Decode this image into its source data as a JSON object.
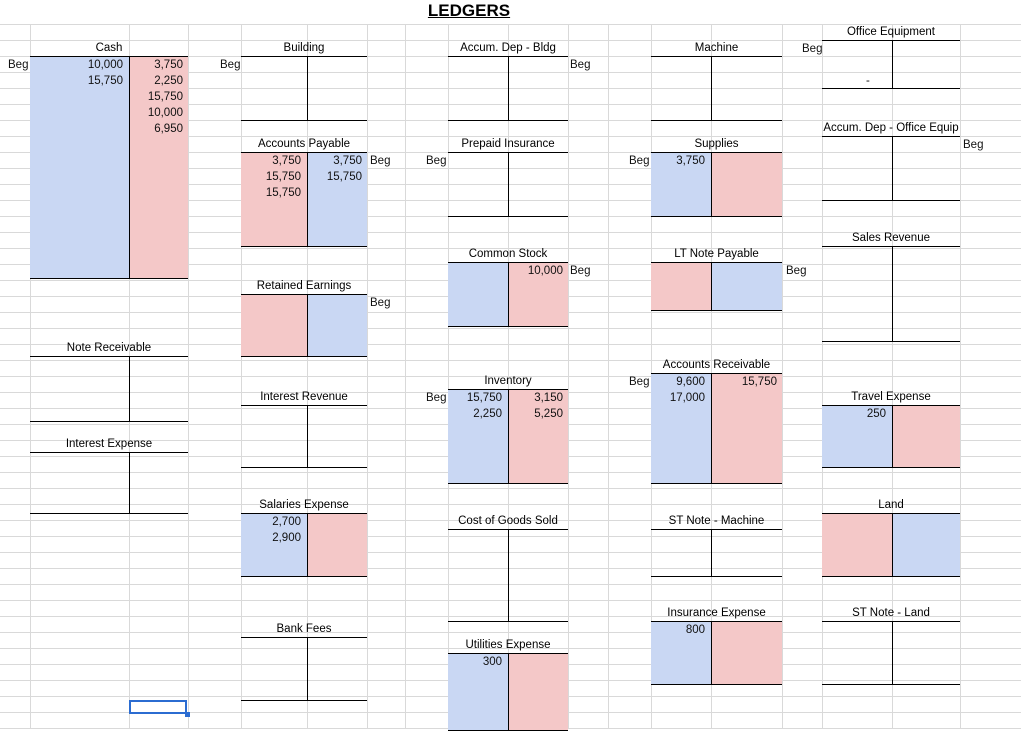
{
  "page_title": "LEDGERS",
  "beg_label": "Beg",
  "colors": {
    "debit_fill": "#c9d7f3",
    "credit_fill": "#f4c8c8",
    "gridline": "#d9d9d9",
    "selection": "#2b6cd1"
  },
  "accounts": {
    "cash": {
      "title": "Cash",
      "debits": [
        "10,000",
        "15,750"
      ],
      "credits": [
        "3,750",
        "2,250",
        "15,750",
        "10,000",
        "6,950"
      ]
    },
    "building": {
      "title": "Building",
      "debits": [],
      "credits": []
    },
    "accum_dep_bldg": {
      "title": "Accum. Dep - Bldg",
      "debits": [],
      "credits": []
    },
    "machine": {
      "title": "Machine",
      "debits": [],
      "credits": []
    },
    "office_equipment": {
      "title": "Office Equipment",
      "debits": [],
      "credits": [],
      "dash": "-"
    },
    "accounts_payable": {
      "title": "Accounts Payable",
      "debits": [
        "3,750",
        "15,750",
        "15,750"
      ],
      "credits": [
        "3,750",
        "15,750"
      ]
    },
    "prepaid_insurance": {
      "title": "Prepaid Insurance",
      "debits": [],
      "credits": []
    },
    "supplies": {
      "title": "Supplies",
      "debits": [
        "3,750"
      ],
      "credits": []
    },
    "accum_dep_office": {
      "title": "Accum. Dep - Office Equip",
      "debits": [],
      "credits": []
    },
    "sales_revenue": {
      "title": "Sales Revenue",
      "debits": [],
      "credits": []
    },
    "common_stock": {
      "title": "Common Stock",
      "debits": [],
      "credits": [
        "10,000"
      ]
    },
    "lt_note_payable": {
      "title": "LT Note Payable",
      "debits": [],
      "credits": []
    },
    "retained_earnings": {
      "title": "Retained Earnings",
      "debits": [],
      "credits": []
    },
    "note_receivable": {
      "title": "Note Receivable",
      "debits": [],
      "credits": []
    },
    "interest_revenue": {
      "title": "Interest Revenue",
      "debits": [],
      "credits": []
    },
    "inventory": {
      "title": "Inventory",
      "debits": [
        "15,750",
        "2,250"
      ],
      "credits": [
        "3,150",
        "5,250"
      ]
    },
    "accounts_receivable": {
      "title": "Accounts Receivable",
      "debits": [
        "9,600",
        "17,000"
      ],
      "credits": [
        "15,750"
      ]
    },
    "travel_expense": {
      "title": "Travel Expense",
      "debits": [
        "250"
      ],
      "credits": []
    },
    "interest_expense": {
      "title": "Interest Expense",
      "debits": [],
      "credits": []
    },
    "salaries_expense": {
      "title": "Salaries Expense",
      "debits": [
        "2,700",
        "2,900"
      ],
      "credits": []
    },
    "cogs": {
      "title": "Cost of Goods Sold",
      "debits": [],
      "credits": []
    },
    "st_note_machine": {
      "title": "ST Note - Machine",
      "debits": [],
      "credits": []
    },
    "land": {
      "title": "Land",
      "debits": [],
      "credits": []
    },
    "insurance_expense": {
      "title": "Insurance Expense",
      "debits": [
        "800"
      ],
      "credits": []
    },
    "st_note_land": {
      "title": "ST Note - Land",
      "debits": [],
      "credits": []
    },
    "bank_fees": {
      "title": "Bank Fees",
      "debits": [],
      "credits": []
    },
    "utilities_expense": {
      "title": "Utilities Expense",
      "debits": [
        "300"
      ],
      "credits": []
    }
  }
}
